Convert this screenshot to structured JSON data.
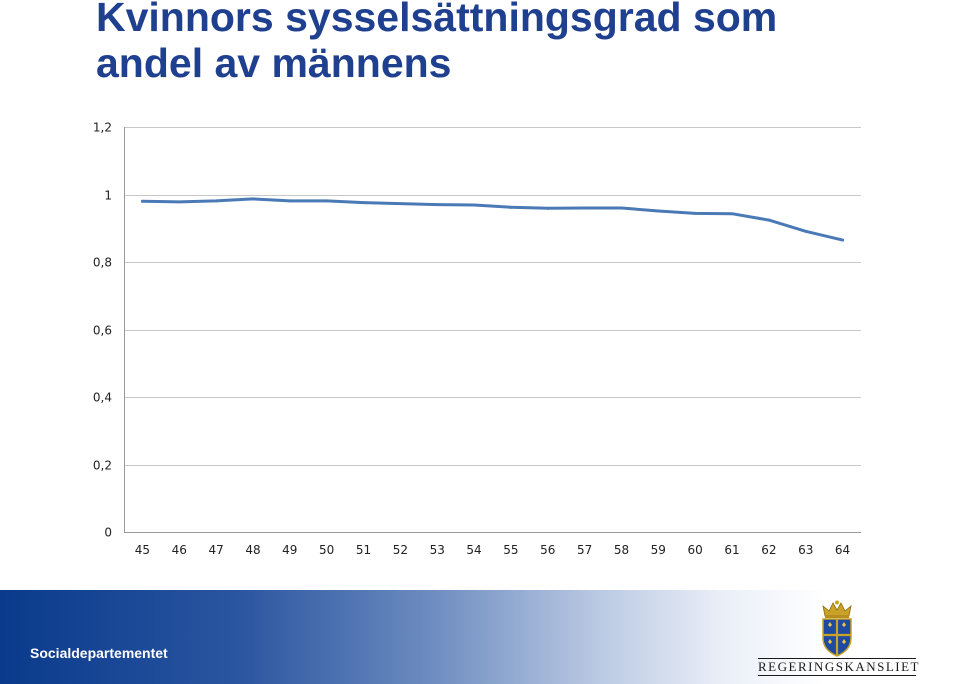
{
  "title": "Kvinnors sysselsättningsgrad som andel av männens",
  "title_lines": [
    "Kvinnors sysselsättningsgrad som",
    "andel av männens"
  ],
  "footer": {
    "department": "Socialdepartementet",
    "logo_text": "REGERINGSKANSLIET",
    "logo_icon": "crown-shield-icon"
  },
  "colors": {
    "title": "#1f3f8f",
    "line": "#4a7ab5",
    "grid": "#c8c8c8",
    "footer_dark": "#0a3a8c"
  },
  "chart_data": {
    "type": "line",
    "title": "",
    "xlabel": "",
    "ylabel": "",
    "categories": [
      "45",
      "46",
      "47",
      "48",
      "49",
      "50",
      "51",
      "52",
      "53",
      "54",
      "55",
      "56",
      "57",
      "58",
      "59",
      "60",
      "61",
      "62",
      "63",
      "64"
    ],
    "series": [
      {
        "values": [
          0.98,
          0.978,
          0.981,
          0.987,
          0.981,
          0.981,
          0.976,
          0.973,
          0.97,
          0.969,
          0.962,
          0.959,
          0.96,
          0.96,
          0.951,
          0.944,
          0.943,
          0.924,
          0.891,
          0.865
        ]
      }
    ],
    "ylim": [
      0,
      1.2
    ],
    "yticks": [
      0,
      0.2,
      0.4,
      0.6,
      0.8,
      1,
      1.2
    ],
    "ytick_labels": [
      "0",
      "0,2",
      "0,4",
      "0,6",
      "0,8",
      "1",
      "1,2"
    ],
    "grid": true,
    "legend": "none"
  }
}
